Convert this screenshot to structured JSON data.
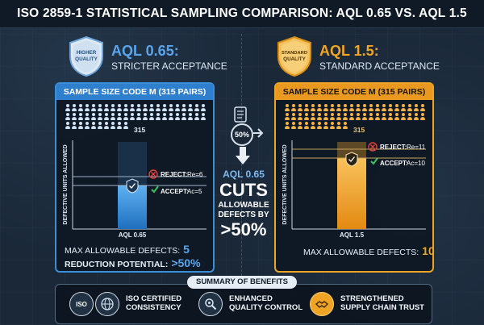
{
  "title": "ISO 2859-1 STATISTICAL SAMPLING COMPARISON: AQL 0.65 VS. AQL 1.5",
  "colors": {
    "blue": "#3b8fd9",
    "orange": "#f0a425",
    "reject_red": "#e0433b",
    "accept_green": "#3cbf63"
  },
  "left": {
    "shield_text": "HIGHER QUALITY",
    "title": "AQL 0.65:",
    "subtitle": "STRICTER ACCEPTANCE",
    "panel_title": "SAMPLE SIZE CODE M (315 PAIRS)",
    "sample_count": "315",
    "y_axis_label": "DEFECTIVE UNITS ALLOWED",
    "x_label": "AQL 0.65",
    "reject_label": "REJECT:",
    "reject_value": "Re=6",
    "accept_label": "ACCEPT:",
    "accept_value": "Ac=5",
    "max_label": "MAX ALLOWABLE DEFECTS:",
    "max_value": "5",
    "reduction_label": "REDUCTION POTENTIAL:",
    "reduction_value": ">50%"
  },
  "right": {
    "shield_text": "STANDARD QUALITY",
    "title": "AQL 1.5:",
    "subtitle": "STANDARD ACCEPTANCE",
    "panel_title": "SAMPLE SIZE CODE M (315 PAIRS)",
    "sample_count": "315",
    "y_axis_label": "DEFECTIVE UNITS ALLOWED",
    "x_label": "AQL 1.5",
    "reject_label": "REJECT:",
    "reject_value": "Re=11",
    "accept_label": "ACCEPT:",
    "accept_value": "Ac=10",
    "max_label": "MAX ALLOWABLE DEFECTS:",
    "max_value": "10"
  },
  "center": {
    "badge": "50%",
    "line1": "AQL 0.65",
    "line2": "CUTS",
    "line3a": "ALLOWABLE",
    "line3b": "DEFECTS BY",
    "line4": ">50%"
  },
  "summary": {
    "heading": "SUMMARY OF BENEFITS",
    "items": [
      {
        "icon": "iso-badge-icon",
        "icon_text": "ISO",
        "line1": "ISO CERTIFIED",
        "line2": "CONSISTENCY"
      },
      {
        "icon": "globe-icon",
        "line1": "ISO CERTIFIED",
        "line2": "CONSISTENCY"
      },
      {
        "icon": "magnifier-gear-icon",
        "line1": "ENHANCED",
        "line2": "QUALITY CONTROL"
      },
      {
        "icon": "handshake-icon",
        "line1": "STRENGTHENED",
        "line2": "SUPPLY CHAIN TRUST"
      }
    ]
  }
}
